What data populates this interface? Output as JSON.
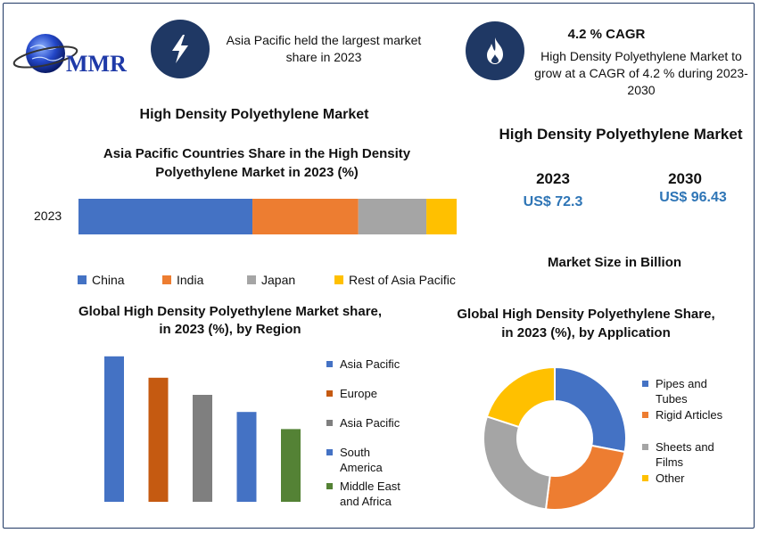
{
  "logo": {
    "text": "MMR"
  },
  "header": {
    "highlight1": "Asia Pacific held the largest market share in 2023",
    "cagr_title": "4.2 % CAGR",
    "cagr_text": "High Density Polyethylene Market to grow at a CAGR of 4.2 % during 2023-2030"
  },
  "left_title": "High Density Polyethylene Market",
  "right_title": "High Density Polyethylene Market",
  "market_size": {
    "year1": "2023",
    "value1": "US$ 72.3",
    "year2": "2030",
    "value2": "US$ 96.43",
    "caption": "Market Size in Billion"
  },
  "colors": {
    "blue": "#4472c4",
    "orange": "#ed7d31",
    "gray": "#a5a5a5",
    "yellow": "#ffc000",
    "dark_orange": "#c55a11",
    "green": "#548235",
    "navy": "#1f3864"
  },
  "chart_data": [
    {
      "type": "bar",
      "orientation": "horizontal-stacked",
      "title": "Asia Pacific Countries Share in the High Density Polyethylene  Market in 2023 (%)",
      "categories": [
        "2023"
      ],
      "series": [
        {
          "name": "China",
          "values": [
            46
          ]
        },
        {
          "name": "India",
          "values": [
            28
          ]
        },
        {
          "name": "Japan",
          "values": [
            18
          ]
        },
        {
          "name": "Rest of Asia Pacific",
          "values": [
            8
          ]
        }
      ],
      "xlim": [
        0,
        100
      ],
      "legend": "bottom"
    },
    {
      "type": "bar",
      "title": "Global High Density Polyethylene Market share, in 2023 (%), by Region",
      "categories": [
        "Asia Pacific",
        "Europe",
        "Asia Pacific",
        "South America",
        "Middle East and Africa"
      ],
      "values": [
        34,
        29,
        25,
        21,
        17
      ],
      "ylim": [
        0,
        35
      ],
      "legend": "right"
    },
    {
      "type": "pie",
      "style": "donut",
      "title": "Global High Density Polyethylene Share, in 2023 (%), by Application",
      "categories": [
        "Pipes and Tubes",
        "Rigid Articles",
        "Sheets and Films",
        "Other"
      ],
      "values": [
        28,
        24,
        28,
        20
      ],
      "legend": "right"
    }
  ]
}
